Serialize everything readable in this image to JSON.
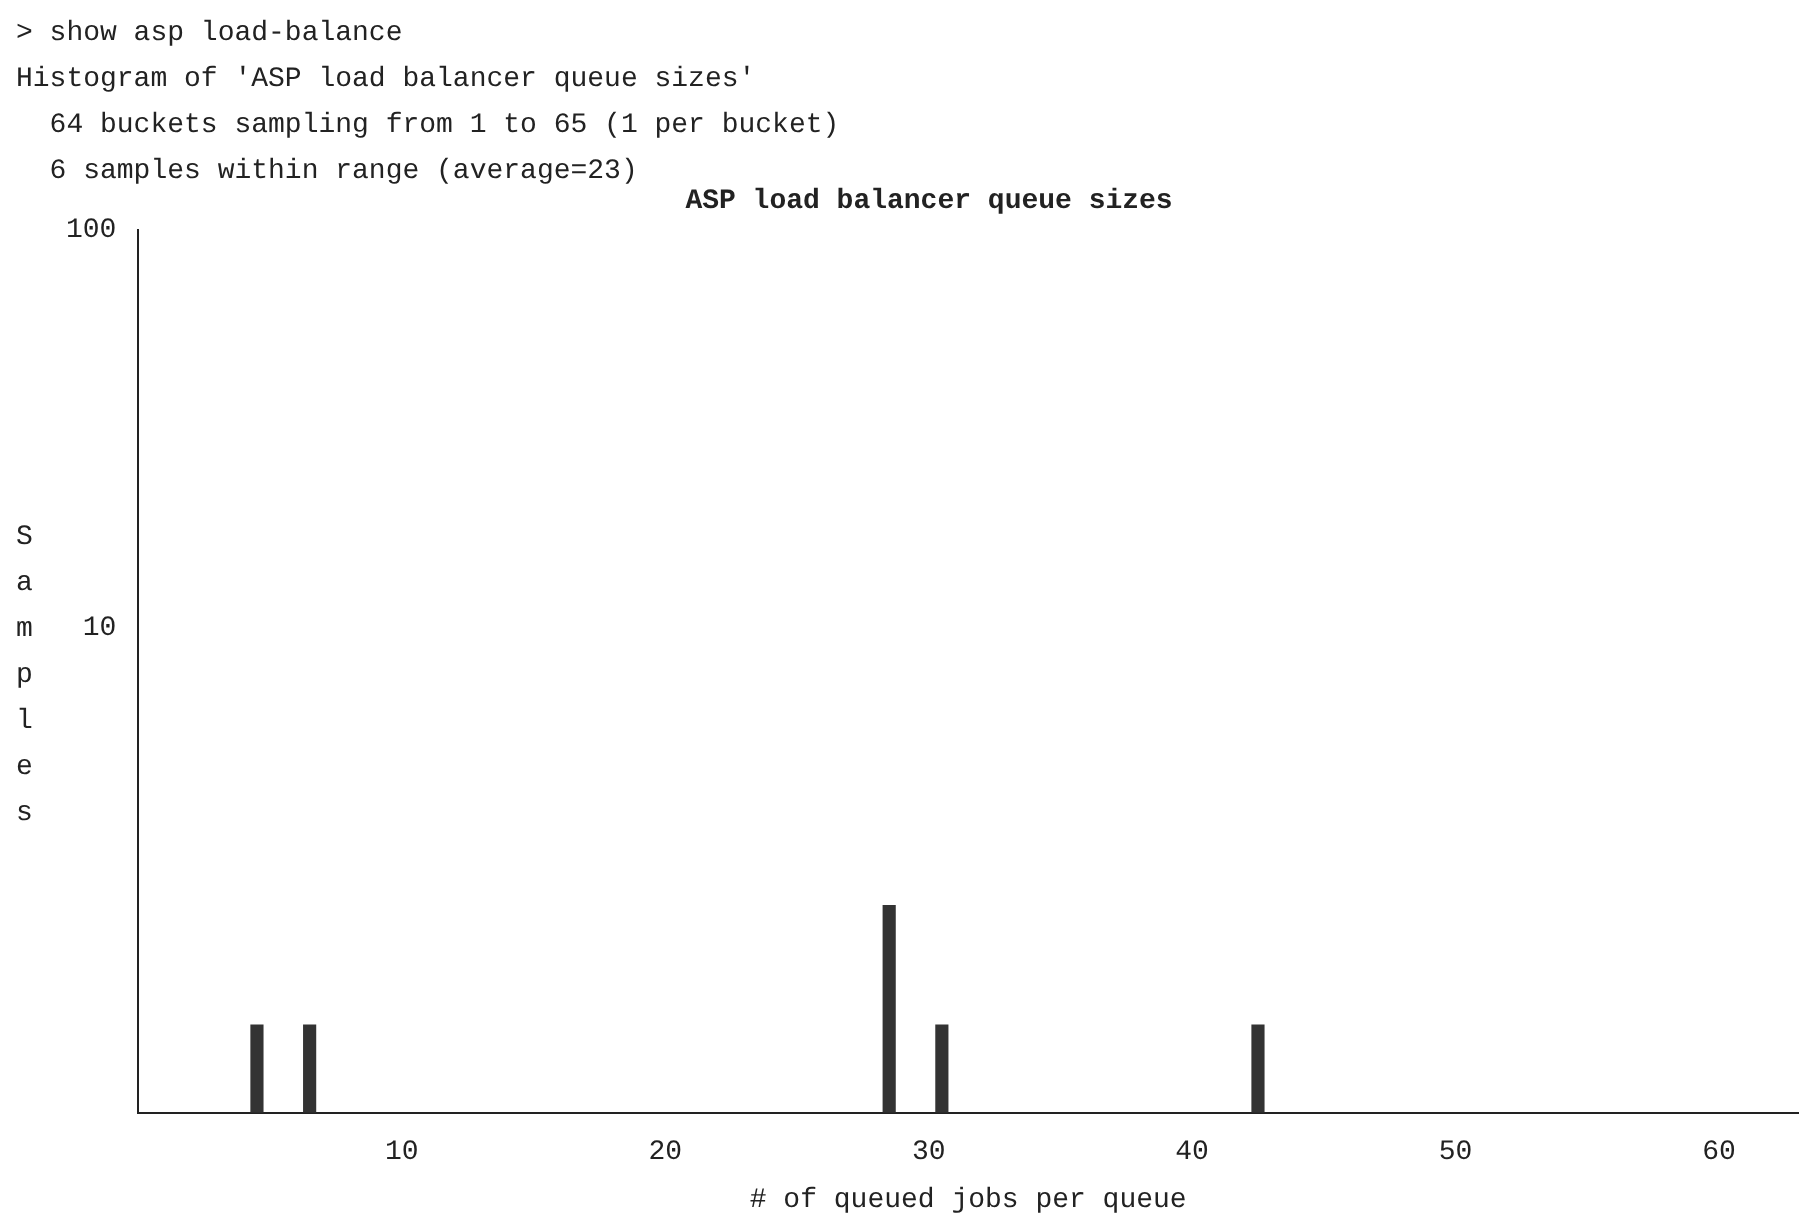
{
  "chart_data": {
    "type": "histogram",
    "title": "ASP load balancer queue sizes",
    "annotations": [
      "> show asp load-balance",
      "Histogram of 'ASP load balancer queue sizes'",
      "  64 buckets sampling from 1 to 65 (1 per bucket)",
      "  6 samples within range (average=23)"
    ],
    "xlabel": "# of queued jobs per queue",
    "ylabel": "Samples",
    "bins": [
      1,
      2,
      3,
      4,
      5,
      6,
      7,
      8,
      9,
      10,
      11,
      12,
      13,
      14,
      15,
      16,
      17,
      18,
      19,
      20,
      21,
      22,
      23,
      24,
      25,
      26,
      27,
      28,
      29,
      30,
      31,
      32,
      33,
      34,
      35,
      36,
      37,
      38,
      39,
      40,
      41,
      42,
      43,
      44,
      45,
      46,
      47,
      48,
      49,
      50,
      51,
      52,
      53,
      54,
      55,
      56,
      57,
      58,
      59,
      60,
      61,
      62,
      63,
      64,
      65
    ],
    "values": [
      null,
      null,
      null,
      1,
      null,
      1,
      null,
      null,
      null,
      null,
      null,
      null,
      null,
      null,
      null,
      null,
      null,
      null,
      null,
      null,
      null,
      null,
      null,
      null,
      null,
      null,
      null,
      2,
      null,
      1,
      null,
      null,
      null,
      null,
      null,
      null,
      null,
      null,
      null,
      null,
      null,
      1,
      null,
      null,
      null,
      null,
      null,
      null,
      null,
      null,
      null,
      null,
      null,
      null,
      null,
      null,
      null,
      null,
      null,
      null,
      null,
      null,
      null,
      null
    ],
    "color": "#333333",
    "log": true,
    "ylim": [
      0.6,
      100
    ],
    "yticks": [
      10,
      100
    ],
    "xlim": [
      0,
      63
    ],
    "xticks": [
      10,
      20,
      30,
      40,
      50,
      60
    ],
    "grid": false,
    "legend": false
  }
}
